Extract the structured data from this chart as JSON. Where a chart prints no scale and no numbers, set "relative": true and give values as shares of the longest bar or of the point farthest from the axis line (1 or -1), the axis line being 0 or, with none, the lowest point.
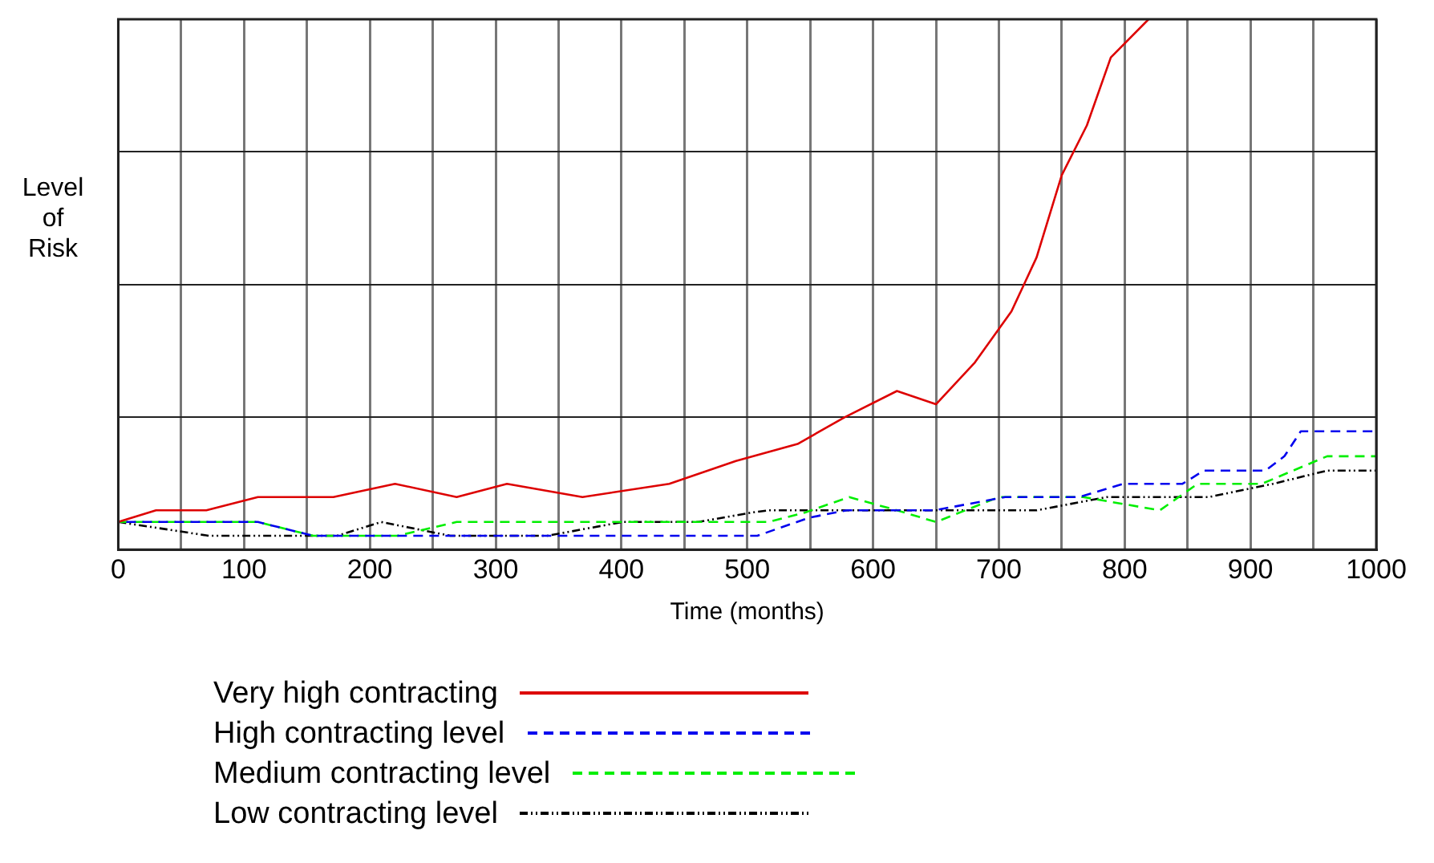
{
  "chart_data": {
    "type": "line",
    "xlabel": "Time (months)",
    "ylabel": "Level of Risk",
    "relative": true,
    "xlim": [
      0,
      1000
    ],
    "xticks": [
      0,
      {
        "value": 50,
        "label": null
      },
      100,
      {
        "value": 150,
        "label": null
      },
      200,
      {
        "value": 250,
        "label": null
      },
      300,
      {
        "value": 350,
        "label": null
      },
      400,
      {
        "value": 450,
        "label": null
      },
      500,
      {
        "value": 550,
        "label": null
      },
      600,
      {
        "value": 650,
        "label": null
      },
      700,
      {
        "value": 750,
        "label": null
      },
      800,
      {
        "value": 850,
        "label": null
      },
      900,
      {
        "value": 950,
        "label": null
      },
      1000
    ],
    "grid": true,
    "legend": "bottom",
    "marker": "none",
    "series": [
      {
        "name": "Very high contracting",
        "color": "#dd0000",
        "line_style": "solid",
        "x": [
          0,
          30,
          70,
          111,
          171,
          220,
          269,
          309,
          369,
          438,
          491,
          540,
          577,
          619,
          650,
          681,
          710,
          730,
          750,
          770,
          789,
          819
        ],
        "values": [
          0.052,
          0.074,
          0.074,
          0.099,
          0.099,
          0.124,
          0.099,
          0.124,
          0.099,
          0.124,
          0.167,
          0.199,
          0.249,
          0.299,
          0.274,
          0.353,
          0.449,
          0.551,
          0.706,
          0.8,
          0.928,
          1
        ]
      },
      {
        "name": "High contracting level",
        "color": "#0000ee",
        "line_style": "dashed",
        "x": [
          0,
          111,
          155,
          508,
          549,
          579,
          649,
          705,
          764,
          799,
          846,
          863,
          912,
          927,
          940,
          1000
        ],
        "values": [
          0.052,
          0.052,
          0.026,
          0.026,
          0.06,
          0.074,
          0.074,
          0.099,
          0.099,
          0.124,
          0.124,
          0.149,
          0.149,
          0.176,
          0.223,
          0.223
        ]
      },
      {
        "name": "Medium contracting level",
        "color": "#00ee00",
        "line_style": "dashed",
        "x": [
          0,
          111,
          155,
          222,
          269,
          517,
          546,
          581,
          619,
          650,
          700,
          767,
          828,
          858,
          909,
          961,
          1000
        ],
        "values": [
          0.052,
          0.052,
          0.026,
          0.026,
          0.052,
          0.052,
          0.07,
          0.099,
          0.074,
          0.052,
          0.099,
          0.099,
          0.074,
          0.124,
          0.124,
          0.176,
          0.176
        ]
      },
      {
        "name": "Low contracting level",
        "color": "#000000",
        "line_style": "dotted",
        "x": [
          0,
          72,
          174,
          209,
          264,
          341,
          401,
          461,
          504,
          517,
          730,
          786,
          867,
          918,
          961,
          1000
        ],
        "values": [
          0.052,
          0.026,
          0.026,
          0.052,
          0.026,
          0.026,
          0.052,
          0.052,
          0.07,
          0.074,
          0.074,
          0.099,
          0.099,
          0.124,
          0.149,
          0.149
        ]
      }
    ]
  }
}
